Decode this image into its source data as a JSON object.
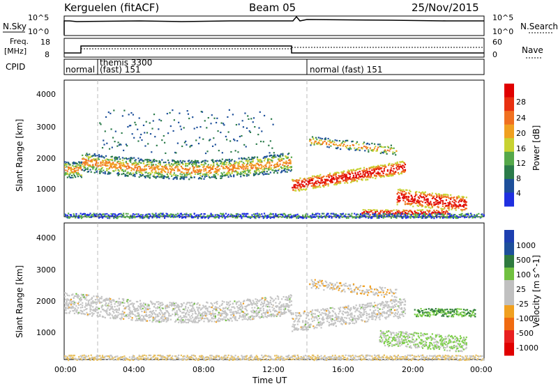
{
  "header": {
    "site": "Kerguelen (fitACF)",
    "beam": "Beam 05",
    "date": "25/Nov/2015"
  },
  "panels": {
    "nsky": {
      "label": "N.Sky",
      "ticks": [
        "10^5",
        "10^0"
      ],
      "right_label": "N.Search"
    },
    "freq": {
      "label_line1": "Freq.",
      "label_line2": "[MHz]",
      "ticks": [
        "18",
        "8"
      ],
      "right_ticks": [
        "60",
        "0"
      ],
      "right_label": "Nave"
    },
    "cpid": {
      "label": "CPID",
      "segments": [
        "normal",
        "themis 3300",
        "(fast) 151",
        "normal (fast) 151"
      ]
    }
  },
  "colors": {
    "power": [
      "#1f2fe0",
      "#1d4f9a",
      "#2b7b4a",
      "#55a84a",
      "#c8d232",
      "#f0a020",
      "#f07020",
      "#e83010",
      "#e00000"
    ],
    "velocity": [
      "#1d3fb0",
      "#1d4f9a",
      "#2e7a3e",
      "#70c040",
      "#c0c0c0",
      "#c0c0c0",
      "#f0a020",
      "#f06a10",
      "#e82020",
      "#e00000"
    ]
  },
  "chart_data": [
    {
      "type": "heatmap",
      "ylabel": "Slant Range [km]",
      "yticks": [
        "4000",
        "3000",
        "2000",
        "1000"
      ],
      "colorbar": {
        "label": "Power [dB]",
        "ticks": [
          "28",
          "24",
          "20",
          "16",
          "12",
          "8",
          "4"
        ]
      },
      "ylim": [
        300,
        4600
      ],
      "series": [
        {
          "start_h": 0.0,
          "end_h": 1.0,
          "range_km": 1800,
          "value": "green-orange"
        },
        {
          "start_h": 1.0,
          "end_h": 13.0,
          "range_km": 1750,
          "value": "orange-red"
        },
        {
          "start_h": 13.0,
          "end_h": 19.5,
          "range_km": 1300,
          "value": "red"
        },
        {
          "start_h": 19.0,
          "end_h": 23.0,
          "range_km": 900,
          "value": "red"
        }
      ]
    },
    {
      "type": "heatmap",
      "ylabel": "Slant Range [km]",
      "yticks": [
        "4000",
        "3000",
        "2000",
        "1000"
      ],
      "colorbar": {
        "label": "Velocity [m s^-1]",
        "ticks": [
          "1000",
          "500",
          "100",
          "25",
          "-25",
          "-100",
          "-500",
          "-1000"
        ]
      },
      "ylim": [
        300,
        4600
      ],
      "xlabel": "Time UT",
      "xticks": [
        "00:00",
        "04:00",
        "08:00",
        "12:00",
        "16:00",
        "20:00",
        "00:00"
      ]
    }
  ]
}
